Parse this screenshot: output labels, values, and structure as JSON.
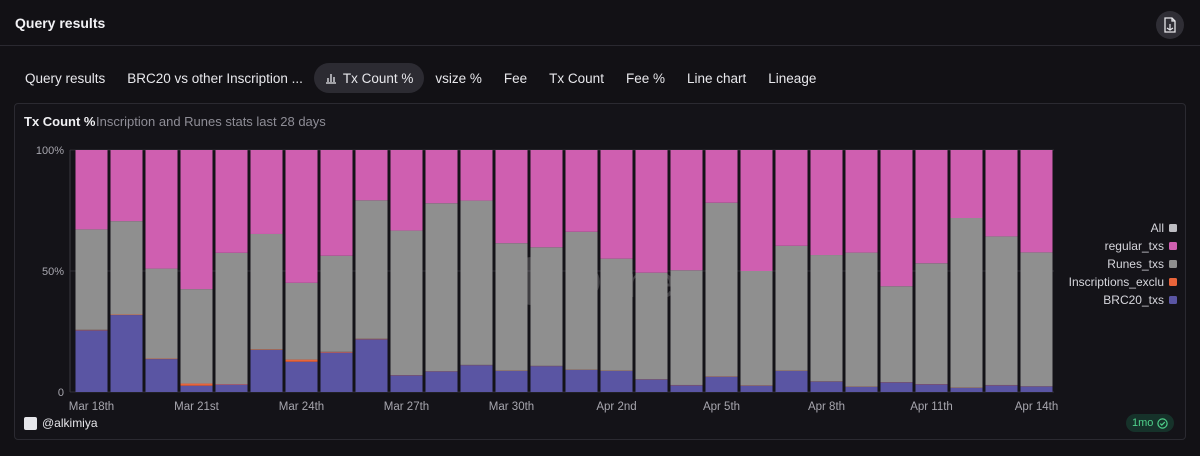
{
  "header": {
    "title": "Query results",
    "csv_icon": "csv-download-icon"
  },
  "tabs": [
    {
      "label": "Query results",
      "active": false
    },
    {
      "label": "BRC20 vs other Inscription ...",
      "active": false
    },
    {
      "label": "Tx Count %",
      "active": true,
      "icon": "bar-chart-icon"
    },
    {
      "label": "vsize %",
      "active": false
    },
    {
      "label": "Fee",
      "active": false
    },
    {
      "label": "Tx Count",
      "active": false
    },
    {
      "label": "Fee %",
      "active": false
    },
    {
      "label": "Line chart",
      "active": false
    },
    {
      "label": "Lineage",
      "active": false
    }
  ],
  "footer": {
    "user": "@alkimiya",
    "badge": "1mo"
  },
  "watermark": "Dune",
  "chart_data": {
    "type": "bar",
    "stacked": true,
    "normalized": true,
    "title": "Tx Count %",
    "subtitle": "Inscription and Runes stats last 28 days",
    "yticks": [
      "0",
      "50%",
      "100%"
    ],
    "ylim": [
      0,
      100
    ],
    "xtick_labels": [
      "Mar 18th",
      "Mar 21st",
      "Mar 24th",
      "Mar 27th",
      "Mar 30th",
      "Apr 2nd",
      "Apr 5th",
      "Apr 8th",
      "Apr 11th",
      "Apr 14th"
    ],
    "xtick_every": 3,
    "legend_position": "right",
    "legend": [
      {
        "name": "All",
        "color": "#bdbdc2"
      },
      {
        "name": "regular_txs",
        "color": "#cf5fb0"
      },
      {
        "name": "Runes_txs",
        "color": "#8f8f8f"
      },
      {
        "name": "Inscriptions_exclu",
        "color": "#e9643a"
      },
      {
        "name": "BRC20_txs",
        "color": "#5a55a3"
      }
    ],
    "categories": [
      "Mar 18",
      "Mar 19",
      "Mar 20",
      "Mar 21",
      "Mar 22",
      "Mar 23",
      "Mar 24",
      "Mar 25",
      "Mar 26",
      "Mar 27",
      "Mar 28",
      "Mar 29",
      "Mar 30",
      "Mar 31",
      "Apr 1",
      "Apr 2",
      "Apr 3",
      "Apr 4",
      "Apr 5",
      "Apr 6",
      "Apr 7",
      "Apr 8",
      "Apr 9",
      "Apr 10",
      "Apr 11",
      "Apr 12",
      "Apr 13",
      "Apr 14"
    ],
    "series": [
      {
        "name": "BRC20_txs",
        "color": "#5a55a3",
        "values": [
          25.5,
          31.8,
          13.6,
          2.6,
          3.1,
          17.4,
          12.5,
          16.3,
          21.8,
          6.9,
          8.5,
          11.1,
          8.7,
          10.7,
          9.1,
          8.7,
          5.2,
          2.8,
          6.3,
          2.6,
          8.7,
          4.3,
          2.1,
          4.0,
          3.2,
          1.7,
          2.8,
          2.3
        ]
      },
      {
        "name": "Inscriptions_exclu",
        "color": "#e9643a",
        "values": [
          0.2,
          0.2,
          0.2,
          0.9,
          0.2,
          0.2,
          0.9,
          0.3,
          0.2,
          0.1,
          0.1,
          0.1,
          0.1,
          0.1,
          0.1,
          0.1,
          0.1,
          0.1,
          0.1,
          0.1,
          0.1,
          0.1,
          0.1,
          0.1,
          0.1,
          0.1,
          0.1,
          0.1
        ]
      },
      {
        "name": "Runes_txs",
        "color": "#8f8f8f",
        "values": [
          41.5,
          38.6,
          37.2,
          39.0,
          54.2,
          47.7,
          31.7,
          39.7,
          57.2,
          59.7,
          69.4,
          67.9,
          52.7,
          49.0,
          57.0,
          46.3,
          44.0,
          47.4,
          71.8,
          47.3,
          51.6,
          52.2,
          55.4,
          39.6,
          49.9,
          70.1,
          61.4,
          55.3
        ]
      },
      {
        "name": "regular_txs",
        "color": "#cf5fb0",
        "values": [
          32.8,
          29.4,
          49.0,
          57.5,
          42.5,
          34.7,
          54.9,
          43.7,
          20.8,
          33.3,
          22.0,
          20.9,
          38.5,
          40.2,
          33.8,
          44.9,
          50.7,
          49.7,
          21.8,
          50.0,
          39.6,
          43.4,
          42.4,
          56.3,
          46.8,
          28.1,
          35.7,
          42.3
        ]
      }
    ]
  }
}
